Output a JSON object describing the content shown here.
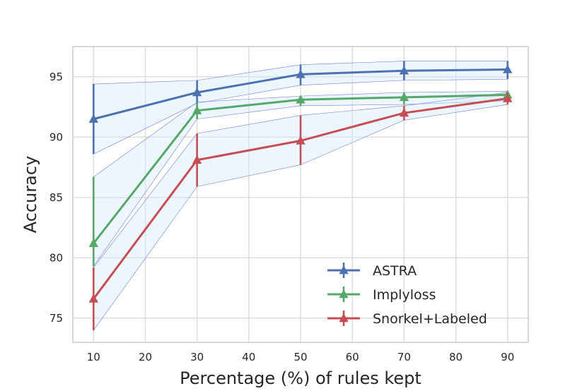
{
  "chart_data": {
    "type": "line",
    "title": "",
    "xlabel": "Percentage (%) of rules kept",
    "ylabel": "Accuracy",
    "x": [
      10,
      30,
      50,
      70,
      90
    ],
    "xlim": [
      6,
      94
    ],
    "ylim": [
      73,
      97.5
    ],
    "xticks": [
      10,
      20,
      30,
      40,
      50,
      60,
      70,
      80,
      90
    ],
    "yticks": [
      75,
      80,
      85,
      90,
      95
    ],
    "grid": true,
    "legend_position": "bottom-right",
    "series": [
      {
        "name": "ASTRA",
        "color": "#4c72b0",
        "values": [
          91.5,
          93.7,
          95.2,
          95.5,
          95.6
        ],
        "lower": [
          88.6,
          92.8,
          94.3,
          94.7,
          94.8
        ],
        "upper": [
          94.4,
          94.7,
          96.0,
          96.3,
          96.3
        ]
      },
      {
        "name": "Implyloss",
        "color": "#55a868",
        "values": [
          81.2,
          92.2,
          93.1,
          93.3,
          93.5
        ],
        "lower": [
          79.3,
          91.5,
          92.6,
          92.7,
          93.0
        ],
        "upper": [
          86.7,
          92.9,
          93.4,
          93.7,
          93.8
        ]
      },
      {
        "name": "Snorkel+Labeled",
        "color": "#c44e52",
        "values": [
          76.6,
          88.1,
          89.7,
          92.0,
          93.2
        ],
        "lower": [
          74.0,
          85.9,
          87.7,
          91.4,
          92.7
        ],
        "upper": [
          79.2,
          90.3,
          91.8,
          92.6,
          93.7
        ]
      }
    ]
  }
}
